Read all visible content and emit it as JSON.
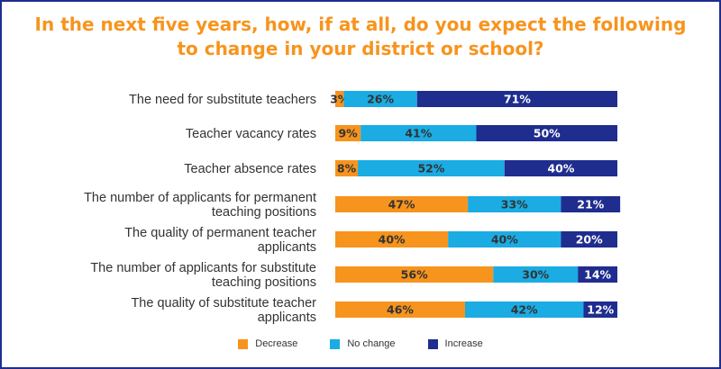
{
  "chart_data": {
    "type": "bar",
    "orientation": "horizontal",
    "stacked": true,
    "title_lines": [
      "In the next five years, how, if at all, do you expect the following",
      "to change in your district or school?"
    ],
    "categories": [
      [
        "The need for substitute teachers"
      ],
      [
        "Teacher vacancy rates"
      ],
      [
        "Teacher absence rates"
      ],
      [
        "The number of applicants for permanent",
        "teaching positions"
      ],
      [
        "The quality of permanent teacher",
        "applicants"
      ],
      [
        "The number of applicants for substitute",
        "teaching positions"
      ],
      [
        "The quality of substitute teacher",
        "applicants"
      ]
    ],
    "series": [
      {
        "name": "Decrease",
        "color": "#f7941d",
        "label_color": "#333333",
        "values": [
          3,
          9,
          8,
          47,
          40,
          56,
          46
        ]
      },
      {
        "name": "No change",
        "color": "#1aace3",
        "label_color": "#333333",
        "values": [
          26,
          41,
          52,
          33,
          40,
          30,
          42
        ]
      },
      {
        "name": "Increase",
        "color": "#1f2d8f",
        "label_color": "#ffffff",
        "values": [
          71,
          50,
          40,
          21,
          20,
          14,
          12
        ]
      }
    ],
    "value_suffix": "%",
    "legend_position": "bottom",
    "grid": false
  }
}
